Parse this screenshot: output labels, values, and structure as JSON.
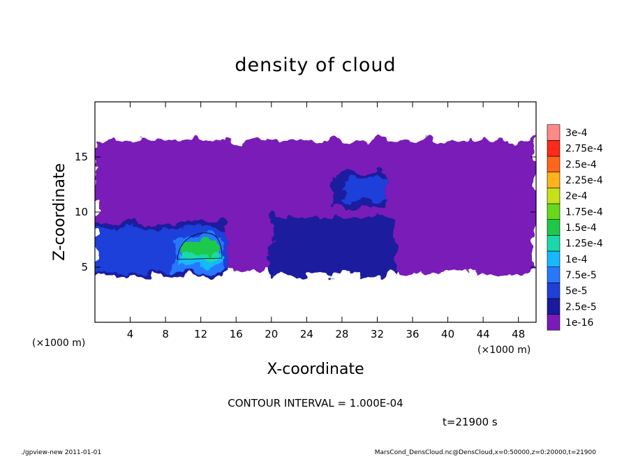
{
  "chart_data": {
    "type": "heatmap",
    "title": "density of cloud",
    "xlabel": "X-coordinate",
    "ylabel": "Z-coordinate",
    "x_unit_label": "(×1000 m)",
    "z_unit_label": "(×1000 m)",
    "xlim": [
      0,
      50
    ],
    "ylim": [
      0,
      20
    ],
    "x_ticks": [
      4,
      8,
      12,
      16,
      20,
      24,
      28,
      32,
      36,
      40,
      44,
      48
    ],
    "y_ticks": [
      5,
      10,
      15
    ],
    "colorbar": {
      "labels": [
        "1e-16",
        "2.5e-5",
        "5e-5",
        "7.5e-5",
        "1e-4",
        "1.25e-4",
        "1.5e-4",
        "1.75e-4",
        "2e-4",
        "2.25e-4",
        "2.5e-4",
        "2.75e-4",
        "3e-4"
      ],
      "colors": [
        "#7a1ab8",
        "#1a1a9e",
        "#1f3fd9",
        "#2878ff",
        "#17b8ff",
        "#1ad9a8",
        "#1ec94a",
        "#66d91a",
        "#c8e01a",
        "#ffb21a",
        "#ff661a",
        "#ff2a1a",
        "#ff8888"
      ]
    },
    "regions": [
      {
        "level": 0,
        "x": [
          0,
          50
        ],
        "z": [
          4.5,
          16.5
        ]
      },
      {
        "level": 1,
        "x": [
          0,
          15
        ],
        "z": [
          4.2,
          9.0
        ]
      },
      {
        "level": 1,
        "x": [
          20,
          34
        ],
        "z": [
          4.2,
          9.5
        ]
      },
      {
        "level": 1,
        "x": [
          27,
          33
        ],
        "z": [
          10.5,
          13.5
        ]
      },
      {
        "level": 2,
        "x": [
          0,
          15
        ],
        "z": [
          4.5,
          8.5
        ]
      },
      {
        "level": 2,
        "x": [
          28,
          33
        ],
        "z": [
          11,
          13
        ]
      },
      {
        "level": 3,
        "x": [
          9,
          14.5
        ],
        "z": [
          4.5,
          8.0
        ]
      },
      {
        "level": 4,
        "x": [
          9.5,
          14.5
        ],
        "z": [
          5.2,
          6.0
        ]
      },
      {
        "level": 5,
        "x": [
          10,
          14
        ],
        "z": [
          5.8,
          6.5
        ]
      },
      {
        "level": 6,
        "x": [
          10,
          14
        ],
        "z": [
          6.3,
          7.5
        ]
      }
    ],
    "contour_interval": "CONTOUR INTERVAL = 1.000E-04",
    "time_label": "t=21900 s"
  },
  "footer": {
    "left": "./gpview-new  2011-01-01",
    "right": "MarsCond_DensCloud.nc@DensCloud,x=0:50000,z=0:20000,t=21900"
  }
}
